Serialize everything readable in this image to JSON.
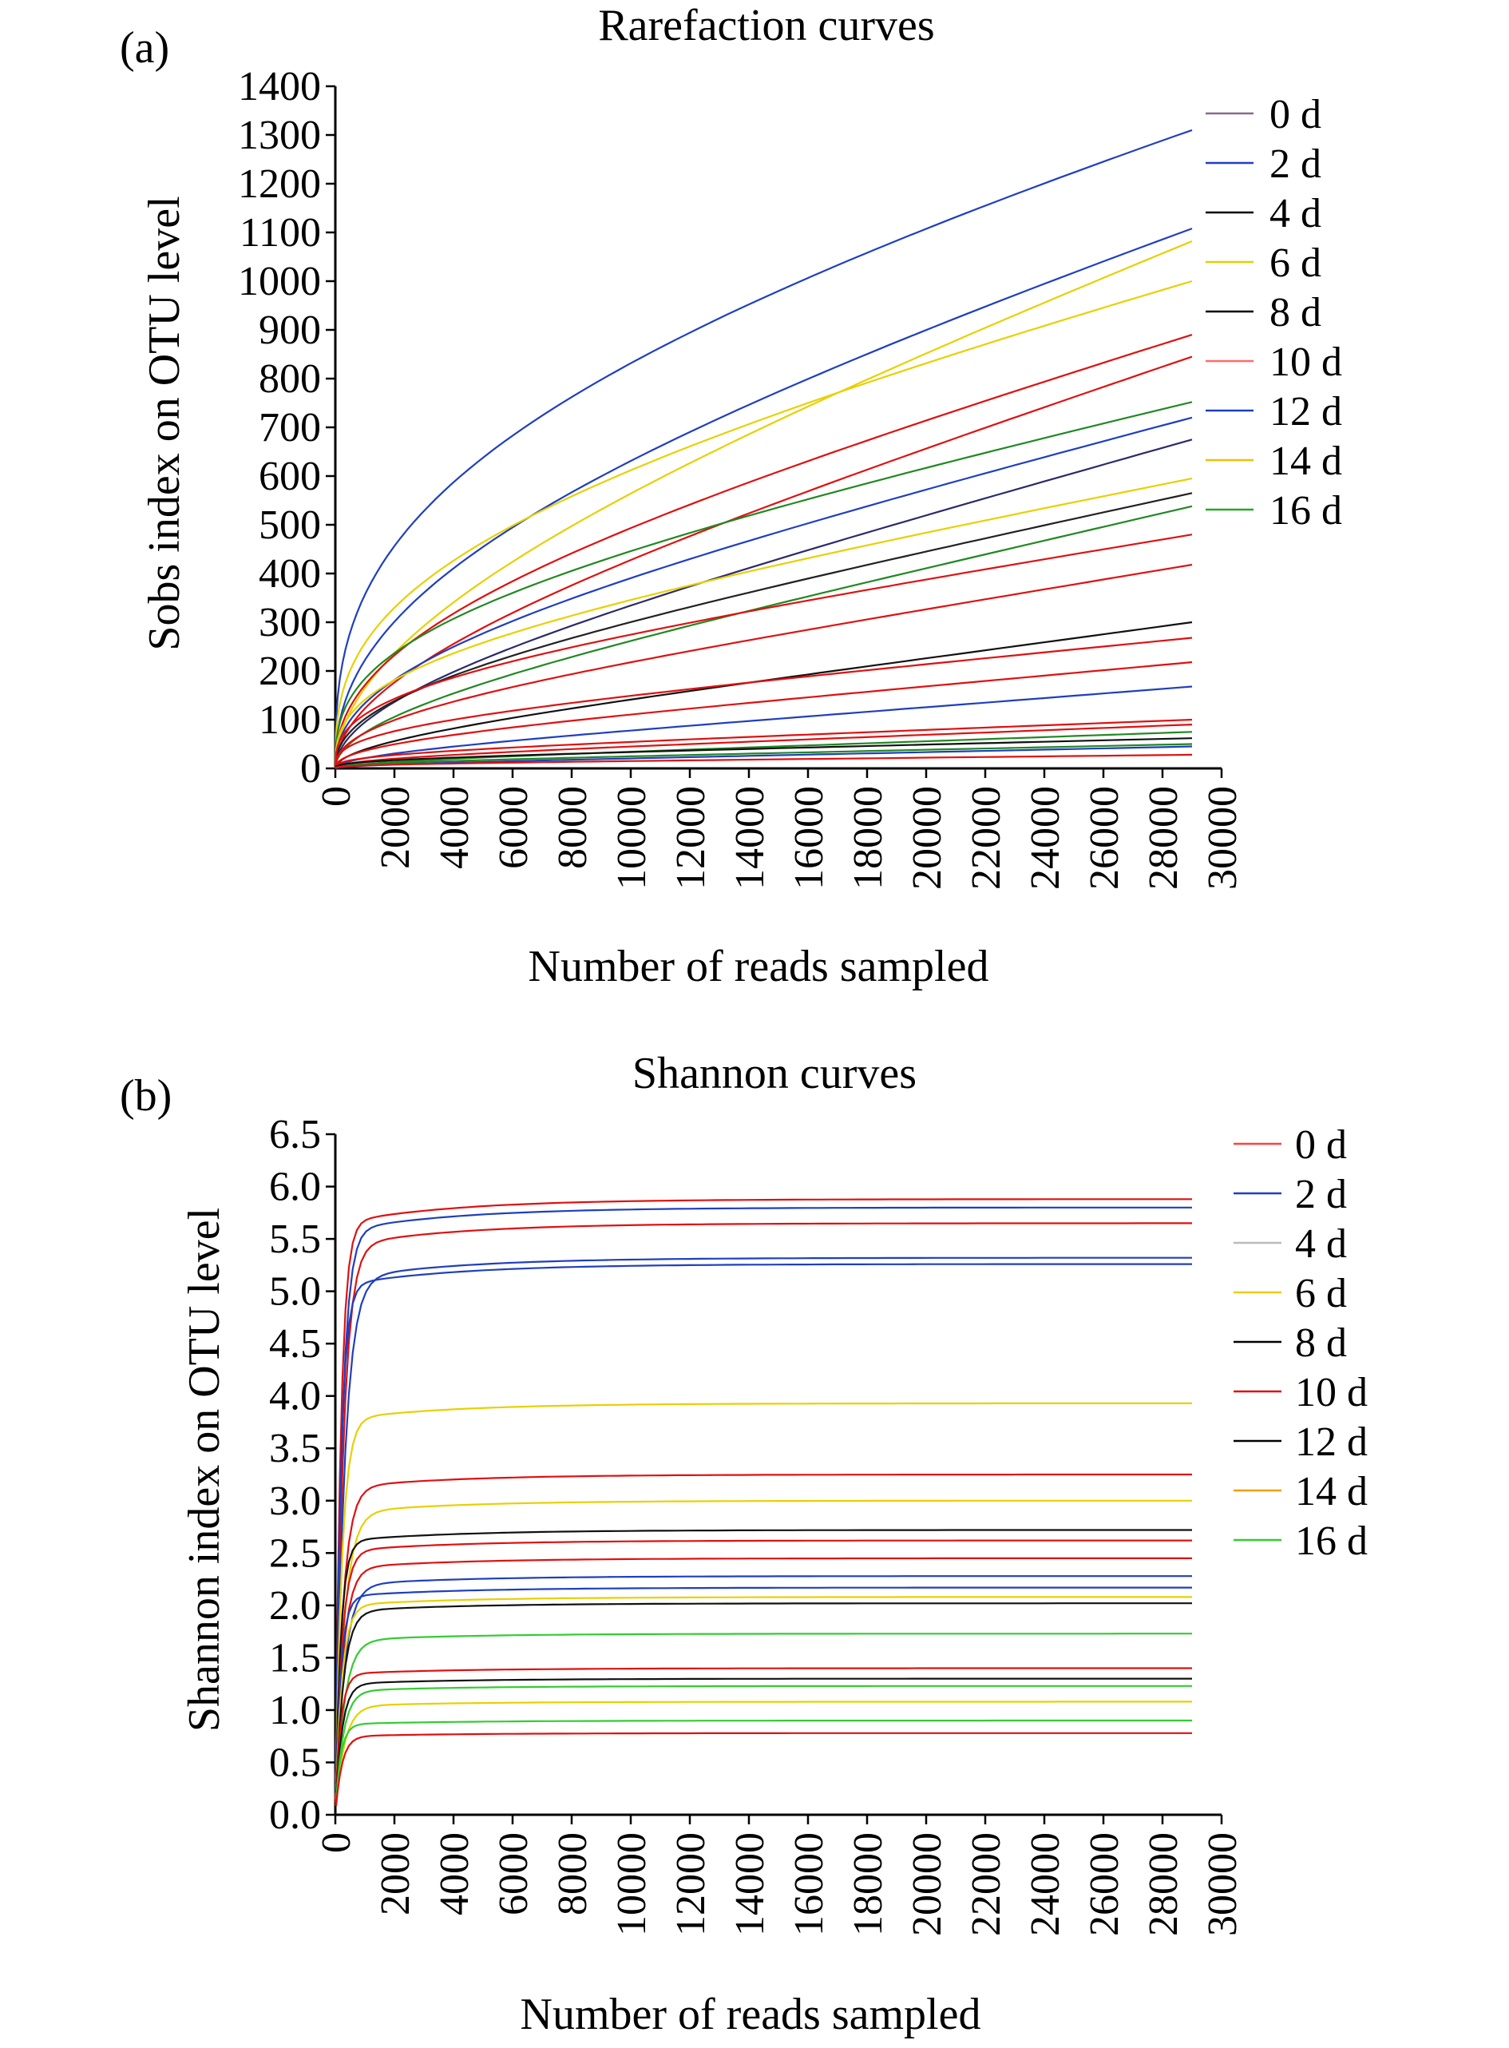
{
  "chart_data": [
    {
      "type": "line",
      "panel_label": "(a)",
      "title": "Rarefaction curves",
      "xlabel": "Number of reads sampled",
      "ylabel": "Sobs index on OTU level",
      "xlim": [
        0,
        30000
      ],
      "ylim": [
        0,
        1400
      ],
      "xticks": [
        "0",
        "2000",
        "4000",
        "6000",
        "8000",
        "10000",
        "12000",
        "14000",
        "16000",
        "18000",
        "20000",
        "22000",
        "24000",
        "26000",
        "28000",
        "30000"
      ],
      "yticks": [
        "0",
        "100",
        "200",
        "300",
        "400",
        "500",
        "600",
        "700",
        "800",
        "900",
        "1000",
        "1100",
        "1200",
        "1300",
        "1400"
      ],
      "grid": false,
      "legend_position": "right",
      "legend": [
        {
          "label": "0 d",
          "color": "#8a6a8a"
        },
        {
          "label": "2 d",
          "color": "#1f3fbf"
        },
        {
          "label": "4 d",
          "color": "#000000"
        },
        {
          "label": "6 d",
          "color": "#e0d000"
        },
        {
          "label": "8 d",
          "color": "#000000"
        },
        {
          "label": "10 d",
          "color": "#ff6b6b"
        },
        {
          "label": "12 d",
          "color": "#1f3fbf"
        },
        {
          "label": "14 d",
          "color": "#f0c000"
        },
        {
          "label": "16 d",
          "color": "#22aa22"
        }
      ],
      "x_max_sampled": 29000,
      "series": [
        {
          "color": "#1f3fbf",
          "final": 1310
        },
        {
          "color": "#1f3fbf",
          "final": 1108
        },
        {
          "color": "#e8d000",
          "final": 1082
        },
        {
          "color": "#e8d000",
          "final": 1000
        },
        {
          "color": "#e01010",
          "final": 890
        },
        {
          "color": "#e01010",
          "final": 845
        },
        {
          "color": "#228822",
          "final": 752
        },
        {
          "color": "#1f3fbf",
          "final": 720
        },
        {
          "color": "#2a2a6a",
          "final": 675
        },
        {
          "color": "#e8d000",
          "final": 595
        },
        {
          "color": "#222222",
          "final": 565
        },
        {
          "color": "#228822",
          "final": 538
        },
        {
          "color": "#e01010",
          "final": 480
        },
        {
          "color": "#e01010",
          "final": 418
        },
        {
          "color": "#111111",
          "final": 300
        },
        {
          "color": "#e01010",
          "final": 268
        },
        {
          "color": "#e01010",
          "final": 218
        },
        {
          "color": "#1f3fbf",
          "final": 168
        },
        {
          "color": "#e01010",
          "final": 100
        },
        {
          "color": "#e01010",
          "final": 90
        },
        {
          "color": "#228822",
          "final": 75
        },
        {
          "color": "#111111",
          "final": 62
        },
        {
          "color": "#228822",
          "final": 50
        },
        {
          "color": "#1f3fbf",
          "final": 45
        },
        {
          "color": "#e01010",
          "final": 28
        }
      ]
    },
    {
      "type": "line",
      "panel_label": "(b)",
      "title": "Shannon curves",
      "xlabel": "Number of reads sampled",
      "ylabel": "Shannon index on OTU level",
      "xlim": [
        0,
        30000
      ],
      "ylim": [
        0,
        6.5
      ],
      "xticks": [
        "0",
        "2000",
        "4000",
        "6000",
        "8000",
        "10000",
        "12000",
        "14000",
        "16000",
        "18000",
        "20000",
        "22000",
        "24000",
        "26000",
        "28000",
        "30000"
      ],
      "yticks": [
        "0.0",
        "0.5",
        "1.0",
        "1.5",
        "2.0",
        "2.5",
        "3.0",
        "3.5",
        "4.0",
        "4.5",
        "5.0",
        "5.5",
        "6.0",
        "6.5"
      ],
      "grid": false,
      "legend_position": "right",
      "legend": [
        {
          "label": "0 d",
          "color": "#ff4040"
        },
        {
          "label": "2 d",
          "color": "#1f3fbf"
        },
        {
          "label": "4 d",
          "color": "#bbbbbb"
        },
        {
          "label": "6 d",
          "color": "#e8d000"
        },
        {
          "label": "8 d",
          "color": "#000000"
        },
        {
          "label": "10 d",
          "color": "#e01010"
        },
        {
          "label": "12 d",
          "color": "#000000"
        },
        {
          "label": "14 d",
          "color": "#f0a000"
        },
        {
          "label": "16 d",
          "color": "#33cc33"
        }
      ],
      "x_max_sampled": 29000,
      "series": [
        {
          "color": "#e01010",
          "final": 5.88
        },
        {
          "color": "#1f3fbf",
          "final": 5.8
        },
        {
          "color": "#e01010",
          "final": 5.65
        },
        {
          "color": "#1f3fbf",
          "final": 5.32
        },
        {
          "color": "#1f3fbf",
          "final": 5.26
        },
        {
          "color": "#e8d000",
          "final": 3.93
        },
        {
          "color": "#e01010",
          "final": 3.25
        },
        {
          "color": "#e8d000",
          "final": 3.0
        },
        {
          "color": "#111111",
          "final": 2.72
        },
        {
          "color": "#e01010",
          "final": 2.62
        },
        {
          "color": "#e01010",
          "final": 2.45
        },
        {
          "color": "#1f3fbf",
          "final": 2.28
        },
        {
          "color": "#1f3fbf",
          "final": 2.17
        },
        {
          "color": "#e8d000",
          "final": 2.08
        },
        {
          "color": "#111111",
          "final": 2.02
        },
        {
          "color": "#33cc33",
          "final": 1.73
        },
        {
          "color": "#e01010",
          "final": 1.4
        },
        {
          "color": "#111111",
          "final": 1.3
        },
        {
          "color": "#33cc33",
          "final": 1.23
        },
        {
          "color": "#e8d000",
          "final": 1.08
        },
        {
          "color": "#33cc33",
          "final": 0.9
        },
        {
          "color": "#e01010",
          "final": 0.78
        }
      ]
    }
  ]
}
